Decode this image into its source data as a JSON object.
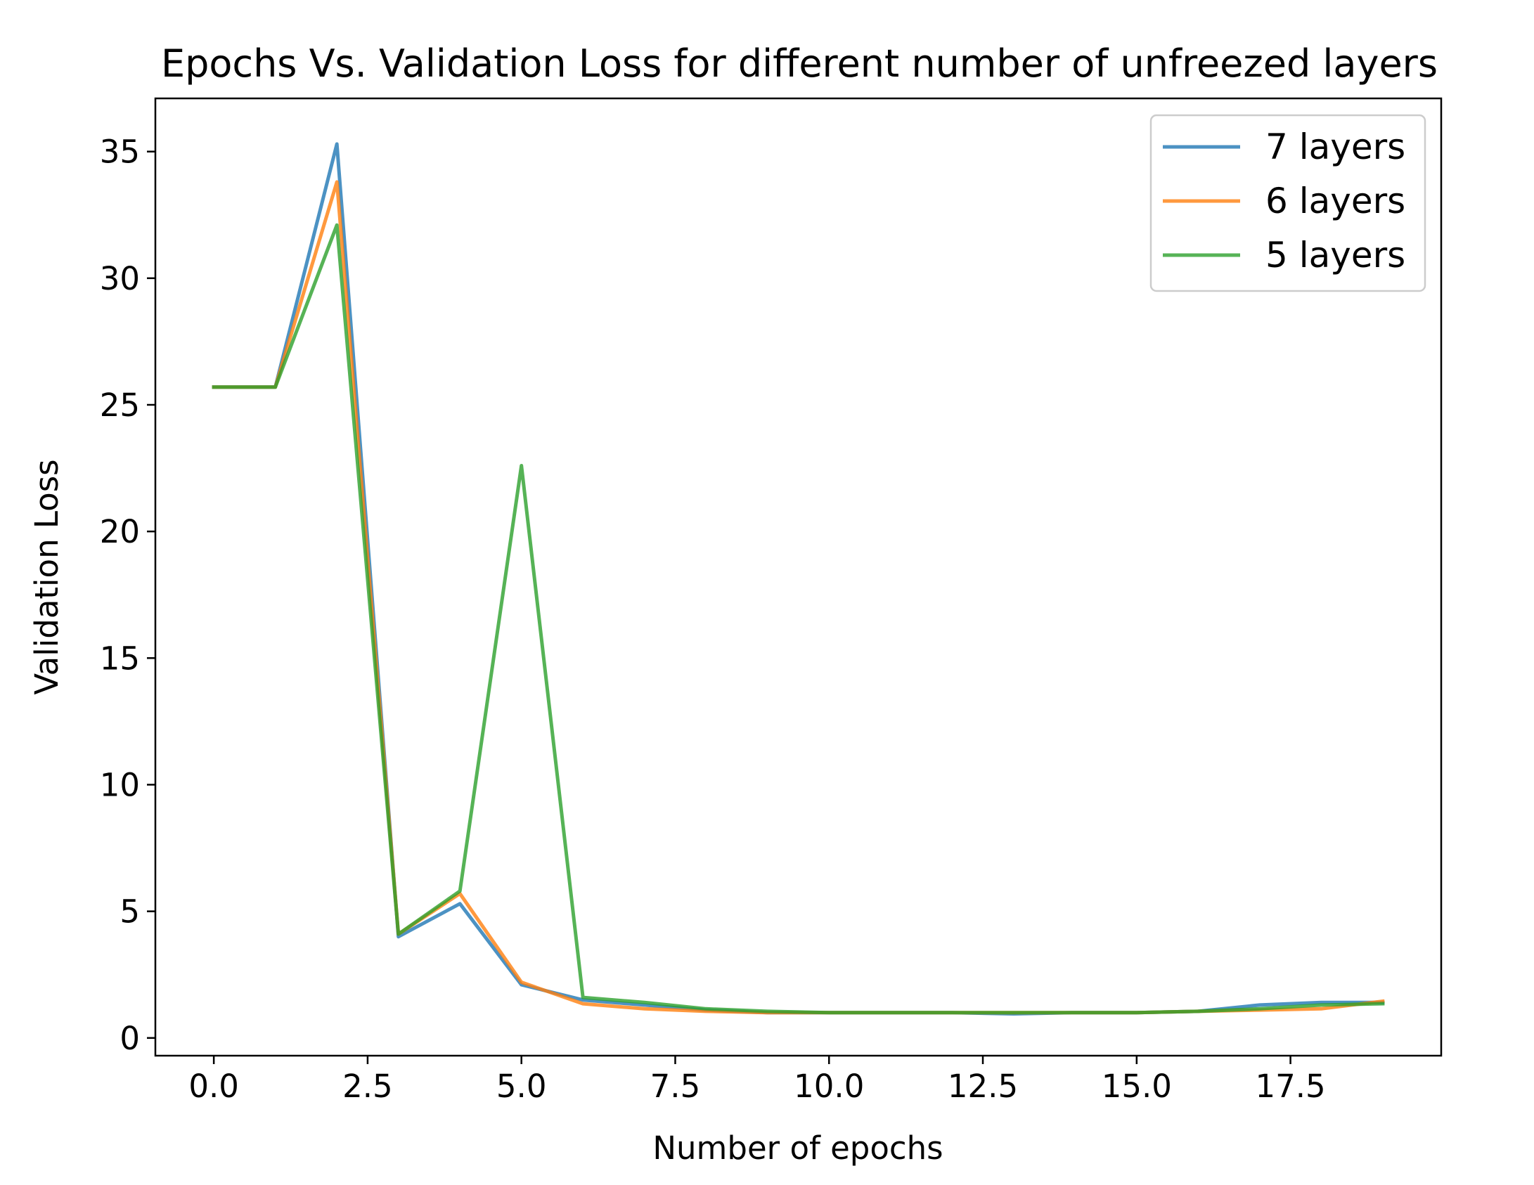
{
  "chart_data": {
    "type": "line",
    "title": "Epochs Vs. Validation Loss for different number of unfreezed layers",
    "xlabel": "Number of epochs",
    "ylabel": "Validation Loss",
    "xlim": [
      -0.95,
      19.95
    ],
    "ylim": [
      -0.7,
      37.1
    ],
    "xticks": [
      0.0,
      2.5,
      5.0,
      7.5,
      10.0,
      12.5,
      15.0,
      17.5
    ],
    "xtick_labels": [
      "0.0",
      "2.5",
      "5.0",
      "7.5",
      "10.0",
      "12.5",
      "15.0",
      "17.5"
    ],
    "yticks": [
      0,
      5,
      10,
      15,
      20,
      25,
      30,
      35
    ],
    "ytick_labels": [
      "0",
      "5",
      "10",
      "15",
      "20",
      "25",
      "30",
      "35"
    ],
    "grid": false,
    "legend_position": "top-right",
    "x": [
      0,
      1,
      2,
      3,
      4,
      5,
      6,
      7,
      8,
      9,
      10,
      11,
      12,
      13,
      14,
      15,
      16,
      17,
      18,
      19
    ],
    "series": [
      {
        "name": "7 layers",
        "color": "#1f77b4",
        "values": [
          25.7,
          25.7,
          35.3,
          4.0,
          5.3,
          2.1,
          1.5,
          1.3,
          1.1,
          1.0,
          1.0,
          1.0,
          1.0,
          0.95,
          1.0,
          1.0,
          1.05,
          1.3,
          1.4,
          1.4
        ]
      },
      {
        "name": "6 layers",
        "color": "#ff7f0e",
        "values": [
          25.7,
          25.7,
          33.8,
          4.1,
          5.7,
          2.2,
          1.35,
          1.15,
          1.05,
          1.0,
          1.0,
          1.0,
          1.0,
          1.0,
          1.0,
          1.0,
          1.05,
          1.1,
          1.15,
          1.45
        ]
      },
      {
        "name": "5 layers",
        "color": "#2ca02c",
        "values": [
          25.7,
          25.7,
          32.1,
          4.1,
          5.8,
          22.6,
          1.6,
          1.4,
          1.15,
          1.05,
          1.0,
          1.0,
          1.0,
          1.0,
          1.0,
          1.0,
          1.05,
          1.15,
          1.3,
          1.35
        ]
      }
    ]
  }
}
